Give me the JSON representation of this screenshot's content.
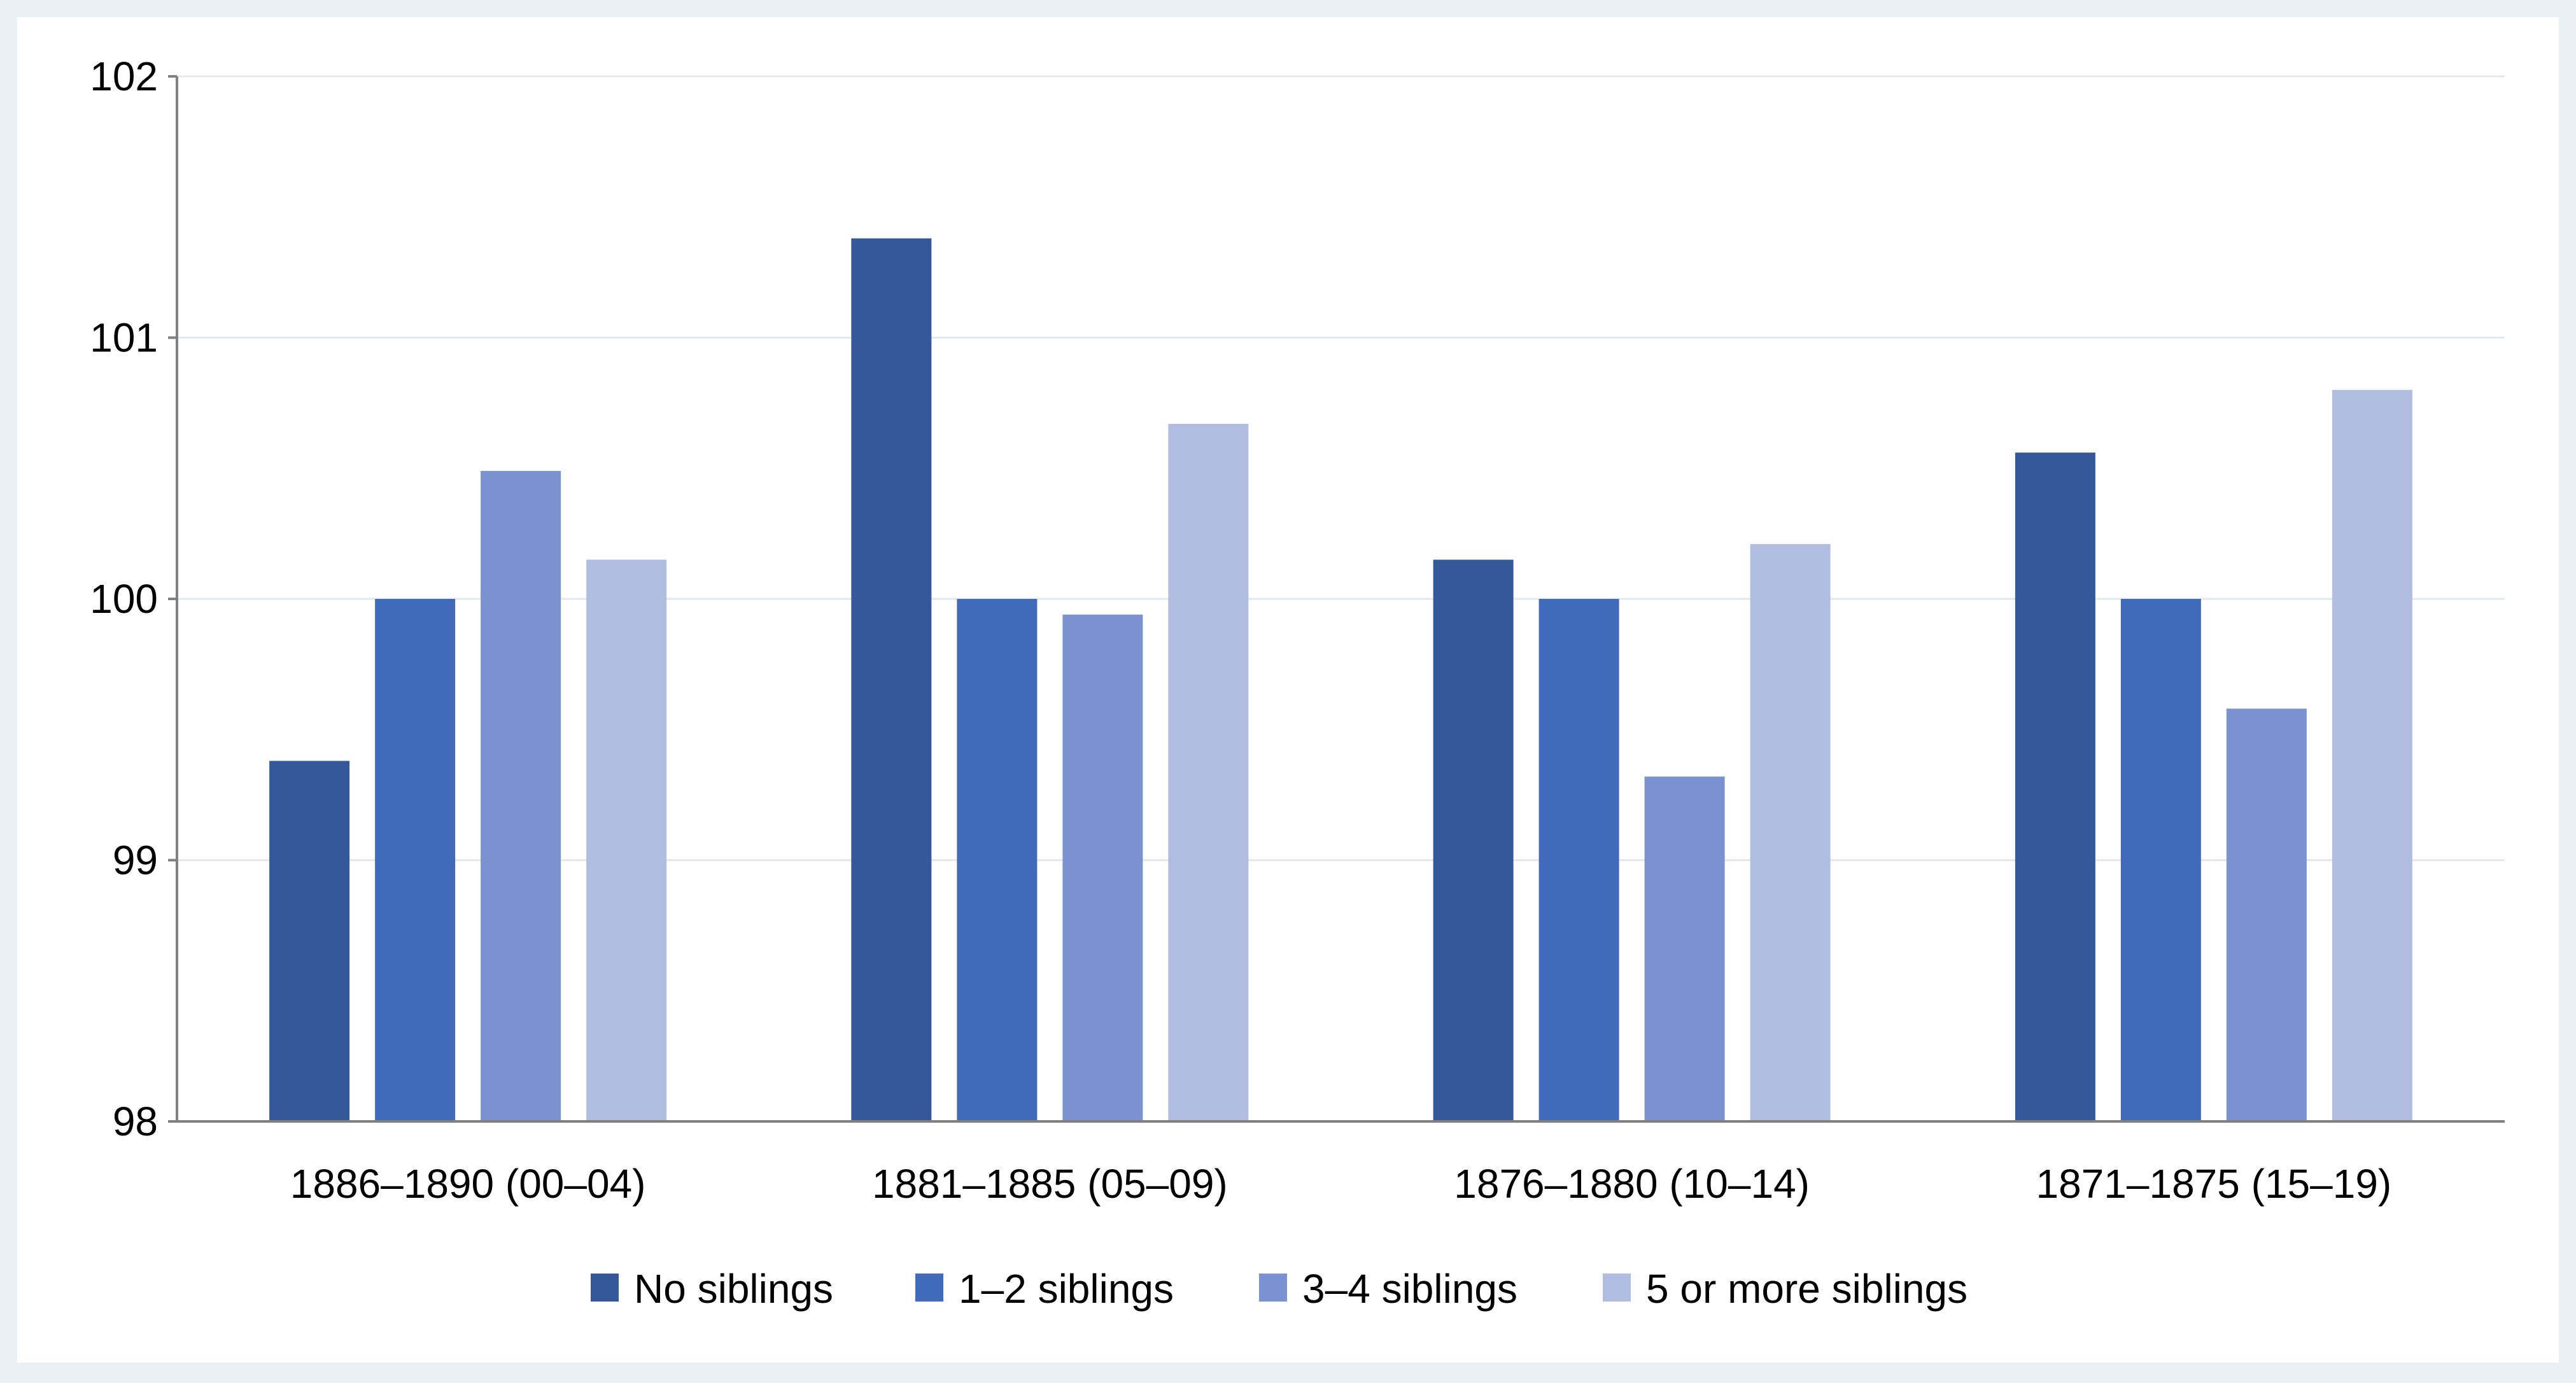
{
  "chart_data": {
    "type": "bar",
    "title": "",
    "xlabel": "",
    "ylabel": "",
    "ylim": [
      98,
      102
    ],
    "yticks": [
      98,
      99,
      100,
      101,
      102
    ],
    "ytick_labels": [
      "98",
      "99",
      "100",
      "101",
      "102"
    ],
    "grid": true,
    "legend_position": "bottom-center",
    "categories": [
      "1886–1890 (00–04)",
      "1881–1885 (05–09)",
      "1876–1880 (10–14)",
      "1871–1875 (15–19)"
    ],
    "series": [
      {
        "name": "No siblings",
        "color": "#34589a",
        "values": [
          99.38,
          101.38,
          100.15,
          100.56
        ]
      },
      {
        "name": "1–2 siblings",
        "color": "#416bba",
        "values": [
          100.0,
          100.0,
          100.0,
          100.0
        ]
      },
      {
        "name": "3–4 siblings",
        "color": "#7a93d0",
        "values": [
          100.49,
          99.94,
          99.32,
          99.58
        ]
      },
      {
        "name": "5 or more siblings",
        "color": "#b1bde0",
        "values": [
          100.15,
          100.67,
          100.21,
          100.8
        ]
      }
    ],
    "colors": {
      "background": "#eaf1f4",
      "plot_background": "#ffffff",
      "gridline": "#e3e8ec",
      "axis": "#808080"
    }
  }
}
